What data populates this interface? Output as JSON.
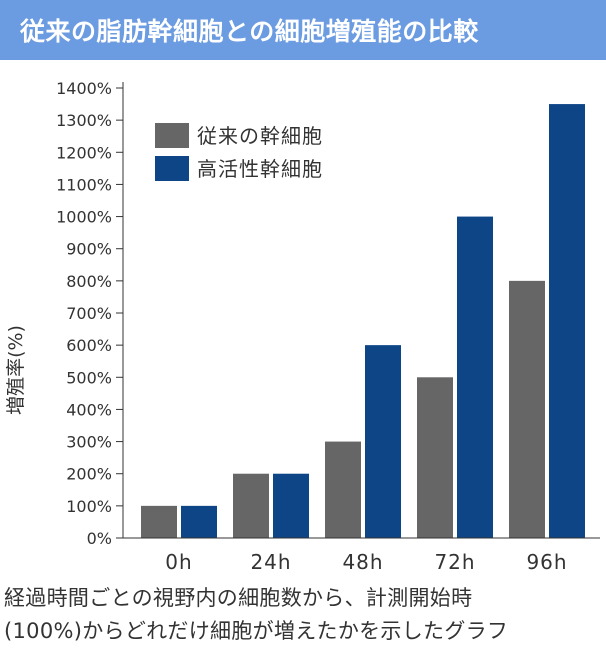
{
  "header": {
    "title": "従来の脂肪幹細胞との細胞増殖能の比較",
    "background_color": "#6b9be0"
  },
  "chart_data": {
    "type": "bar",
    "title": "従来の脂肪幹細胞との細胞増殖能の比較",
    "ylabel": "増殖率(%)",
    "xlabel": "",
    "categories": [
      "0h",
      "24h",
      "48h",
      "72h",
      "96h"
    ],
    "ylim": [
      0,
      1400
    ],
    "yticks": [
      0,
      100,
      200,
      300,
      400,
      500,
      600,
      700,
      800,
      900,
      1000,
      1100,
      1200,
      1300,
      1400
    ],
    "ytick_suffix": "%",
    "grid": false,
    "legend_position": "top-left",
    "series": [
      {
        "name": "従来の幹細胞",
        "color": "#666666",
        "values": [
          100,
          200,
          300,
          500,
          800
        ]
      },
      {
        "name": "高活性幹細胞",
        "color": "#0d4587",
        "values": [
          100,
          200,
          600,
          1000,
          1350
        ]
      }
    ]
  },
  "caption": {
    "line1": "経過時間ごとの視野内の細胞数から、計測開始時",
    "line2": "(100%)からどれだけ細胞が増えたかを示したグラフ"
  }
}
